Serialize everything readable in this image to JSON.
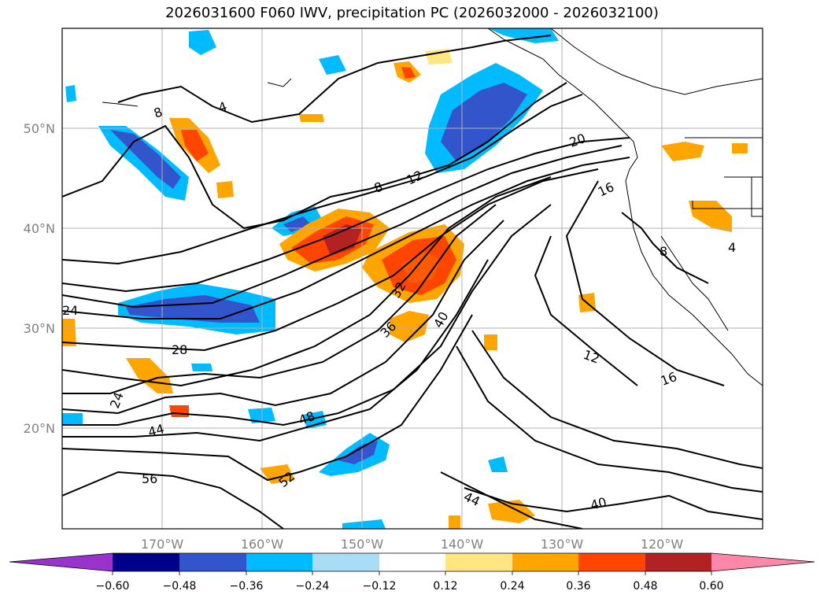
{
  "title": "2026031600 F060 IWV, precipitation PC (2026032000 - 2026032100)",
  "map": {
    "lon_range": [
      180,
      110
    ],
    "lat_range": [
      10,
      60
    ],
    "lat_ticks": [
      {
        "value": 50,
        "label": "50°N"
      },
      {
        "value": 40,
        "label": "40°N"
      },
      {
        "value": 30,
        "label": "30°N"
      },
      {
        "value": 20,
        "label": "20°N"
      }
    ],
    "lon_ticks": [
      {
        "value": 170,
        "label": "170°W"
      },
      {
        "value": 160,
        "label": "160°W"
      },
      {
        "value": 150,
        "label": "150°W"
      },
      {
        "value": 140,
        "label": "140°W"
      },
      {
        "value": 130,
        "label": "130°W"
      },
      {
        "value": 120,
        "label": "120°W"
      }
    ],
    "grid": true,
    "iwv_contour_labels": [
      "4",
      "8",
      "8",
      "12",
      "16",
      "20",
      "24",
      "24",
      "28",
      "32",
      "36",
      "40",
      "44",
      "44",
      "48",
      "52",
      "56",
      "4",
      "8",
      "12",
      "16",
      "40"
    ]
  },
  "colorbar": {
    "extend": "both",
    "ticks": [
      "−0.60",
      "−0.48",
      "−0.36",
      "−0.24",
      "−0.12",
      "0.12",
      "0.24",
      "0.36",
      "0.48",
      "0.60"
    ],
    "colors": [
      "#9933cc",
      "#00008b",
      "#3355cc",
      "#00bbff",
      "#aaddf5",
      "#ffffff",
      "#ffe680",
      "#ffa500",
      "#ff4500",
      "#b22222",
      "#ff88aa"
    ]
  }
}
